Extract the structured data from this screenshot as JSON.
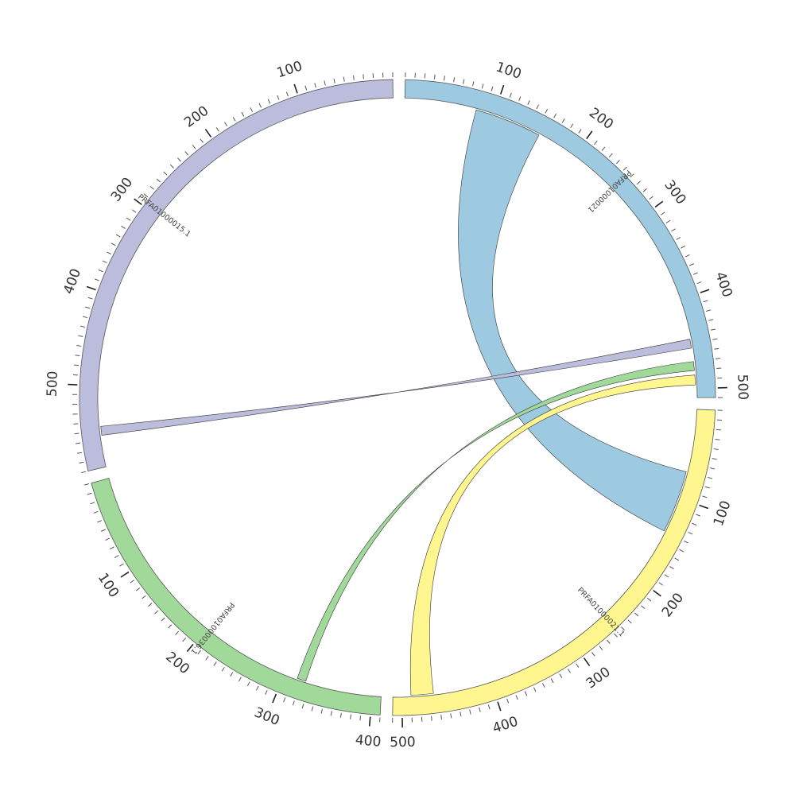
{
  "chart_data": {
    "type": "chord",
    "title": "",
    "units_per_tick": 10,
    "major_every": 100,
    "segments": [
      {
        "name": "PRFA01000021",
        "start": 0,
        "end": 510,
        "color": "#9ecae1",
        "orientation": "clockwise"
      },
      {
        "name": "PRFA01000021.1",
        "start": 0,
        "end": 510,
        "color": "#fff68f",
        "orientation": "clockwise"
      },
      {
        "name": "PRFA01000036.1",
        "start": 0,
        "end": 410,
        "color": "#a1d99b",
        "orientation": "counterclockwise"
      },
      {
        "name": "PRFA01000015.1",
        "start": 0,
        "end": 590,
        "color": "#bcbddc",
        "orientation": "counterclockwise"
      }
    ],
    "links": [
      {
        "from": {
          "segment": "PRFA01000021",
          "start": 80,
          "end": 155
        },
        "to": {
          "segment": "PRFA01000021.1",
          "start": 70,
          "end": 140
        },
        "color": "#9ecae1"
      },
      {
        "from": {
          "segment": "PRFA01000015.1",
          "start": 545,
          "end": 555
        },
        "to": {
          "segment": "PRFA01000021",
          "start": 445,
          "end": 455
        },
        "color": "#bcbddc"
      },
      {
        "from": {
          "segment": "PRFA01000036.1",
          "start": 315,
          "end": 325
        },
        "to": {
          "segment": "PRFA01000021",
          "start": 470,
          "end": 480
        },
        "color": "#a1d99b"
      },
      {
        "from": {
          "segment": "PRFA01000021",
          "start": 485,
          "end": 496
        },
        "to": {
          "segment": "PRFA01000021.1",
          "start": 465,
          "end": 490
        },
        "color": "#fff68f"
      }
    ]
  }
}
